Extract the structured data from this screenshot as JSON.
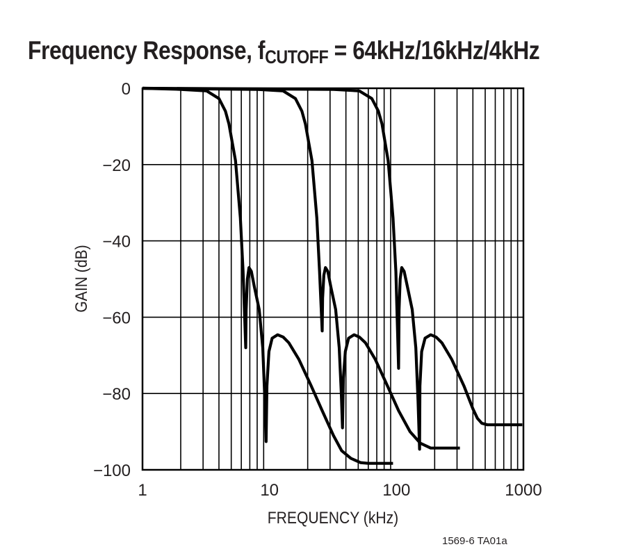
{
  "chart_data": {
    "type": "line",
    "title": "Frequency Response, f",
    "title_subscript": "CUTOFF",
    "title_suffix": " = 64kHz/16kHz/4kHz",
    "xlabel": "FREQUENCY (kHz)",
    "ylabel": "GAIN (dB)",
    "x_scale": "log",
    "xlim": [
      1,
      1000
    ],
    "ylim": [
      -100,
      0
    ],
    "x_ticks": [
      "1",
      "10",
      "100",
      "1000"
    ],
    "x_tick_values": [
      1,
      10,
      100,
      1000
    ],
    "y_ticks": [
      "0",
      "−20",
      "−40",
      "−60",
      "−80",
      "−100"
    ],
    "y_tick_values": [
      0,
      -20,
      -40,
      -60,
      -80,
      -100
    ],
    "grid": true,
    "line_color": "#000000",
    "series": [
      {
        "points": [
          [
            1,
            0
          ],
          [
            2,
            -0.3
          ],
          [
            3.2,
            -0.7
          ],
          [
            4,
            -2.7
          ],
          [
            4.5,
            -6
          ],
          [
            4.8,
            -9.4
          ],
          [
            5.4,
            -19
          ],
          [
            5.9,
            -34
          ],
          [
            6.2,
            -48
          ],
          [
            6.5,
            -68
          ],
          [
            6.55,
            -58
          ],
          [
            6.7,
            -50
          ],
          [
            6.9,
            -47
          ],
          [
            7.2,
            -48
          ],
          [
            7.6,
            -52
          ],
          [
            8.3,
            -58
          ],
          [
            8.85,
            -68
          ],
          [
            9.2,
            -82
          ],
          [
            9.4,
            -92.6
          ],
          [
            9.55,
            -78
          ],
          [
            9.9,
            -69
          ],
          [
            10.5,
            -65.5
          ],
          [
            11.6,
            -64.6
          ],
          [
            12.8,
            -65.2
          ],
          [
            14.2,
            -66.7
          ],
          [
            17,
            -71
          ],
          [
            21.3,
            -78
          ],
          [
            26,
            -84.5
          ],
          [
            31.9,
            -91
          ],
          [
            37,
            -95
          ],
          [
            43.8,
            -97
          ],
          [
            52,
            -98.1
          ],
          [
            60,
            -98.3
          ],
          [
            94,
            -98.3
          ]
        ]
      },
      {
        "points": [
          [
            1,
            0
          ],
          [
            8,
            -0.3
          ],
          [
            12.8,
            -0.7
          ],
          [
            16,
            -2.7
          ],
          [
            18,
            -6
          ],
          [
            19.2,
            -9.4
          ],
          [
            21.6,
            -19
          ],
          [
            23.6,
            -34
          ],
          [
            24.8,
            -48
          ],
          [
            26,
            -63.6
          ],
          [
            26.2,
            -55
          ],
          [
            26.8,
            -49
          ],
          [
            27.6,
            -47
          ],
          [
            28.8,
            -48
          ],
          [
            30.4,
            -52
          ],
          [
            33.2,
            -58
          ],
          [
            35.4,
            -68
          ],
          [
            36.8,
            -80
          ],
          [
            37.6,
            -89
          ],
          [
            38.2,
            -76
          ],
          [
            39.6,
            -69
          ],
          [
            42,
            -65.5
          ],
          [
            46.4,
            -64.6
          ],
          [
            51,
            -65.2
          ],
          [
            57,
            -66.7
          ],
          [
            68,
            -71
          ],
          [
            85,
            -78
          ],
          [
            104,
            -84.5
          ],
          [
            128,
            -90
          ],
          [
            154,
            -93
          ],
          [
            186,
            -94.3
          ],
          [
            316,
            -94.3
          ]
        ]
      },
      {
        "points": [
          [
            1,
            0
          ],
          [
            32,
            -0.3
          ],
          [
            51,
            -0.7
          ],
          [
            64,
            -2.7
          ],
          [
            72,
            -6
          ],
          [
            77,
            -9.4
          ],
          [
            86,
            -19
          ],
          [
            94,
            -34
          ],
          [
            99,
            -48
          ],
          [
            104,
            -73.4
          ],
          [
            104.8,
            -58
          ],
          [
            107,
            -50
          ],
          [
            110,
            -47
          ],
          [
            115,
            -48
          ],
          [
            122,
            -52
          ],
          [
            133,
            -58
          ],
          [
            142,
            -68
          ],
          [
            148,
            -82
          ],
          [
            152,
            -94.6
          ],
          [
            153,
            -78
          ],
          [
            158,
            -69
          ],
          [
            168,
            -65.5
          ],
          [
            186,
            -64.6
          ],
          [
            205,
            -65.2
          ],
          [
            228,
            -66.7
          ],
          [
            272,
            -71
          ],
          [
            340,
            -78
          ],
          [
            400,
            -84
          ],
          [
            434,
            -86.5
          ],
          [
            470,
            -87.8
          ],
          [
            519,
            -88.2
          ],
          [
            980,
            -88.2
          ]
        ]
      }
    ],
    "footnote": "1569-6 TA01a"
  }
}
